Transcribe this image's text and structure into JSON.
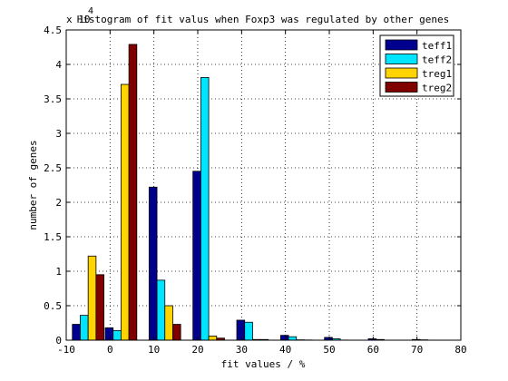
{
  "chart_data": {
    "type": "bar",
    "title": "Histogram of fit valus when Foxp3 was regulated by other genes",
    "xlabel": "fit values / %",
    "ylabel": "number of genes",
    "exponent_label": "x 10",
    "exponent_power": "4",
    "xlim": [
      -10,
      80
    ],
    "ylim": [
      0,
      45000
    ],
    "xticks": [
      -10,
      0,
      10,
      20,
      30,
      40,
      50,
      60,
      70,
      80
    ],
    "yticks": [
      0,
      5000,
      10000,
      15000,
      20000,
      25000,
      30000,
      35000,
      40000,
      45000
    ],
    "ytick_labels": [
      "0",
      "0.5",
      "1",
      "1.5",
      "2",
      "2.5",
      "3",
      "3.5",
      "4",
      "4.5"
    ],
    "grid": true,
    "legend_position": "top-right",
    "bin_centers": [
      -5,
      2.5,
      12.5,
      22.5,
      32.5,
      42.5,
      52.5,
      62.5,
      72.5
    ],
    "series": [
      {
        "name": "teff1",
        "color": "#00008f",
        "values": [
          2300,
          1800,
          22200,
          24500,
          2900,
          700,
          400,
          200,
          100
        ]
      },
      {
        "name": "teff2",
        "color": "#00e5ff",
        "values": [
          3600,
          1400,
          8700,
          38100,
          2600,
          500,
          200,
          100,
          50
        ]
      },
      {
        "name": "treg1",
        "color": "#ffd400",
        "values": [
          12200,
          37100,
          5000,
          600,
          100,
          50,
          20,
          10,
          5
        ]
      },
      {
        "name": "treg2",
        "color": "#800000",
        "values": [
          9500,
          42900,
          2300,
          300,
          100,
          30,
          10,
          5,
          0
        ]
      }
    ]
  }
}
